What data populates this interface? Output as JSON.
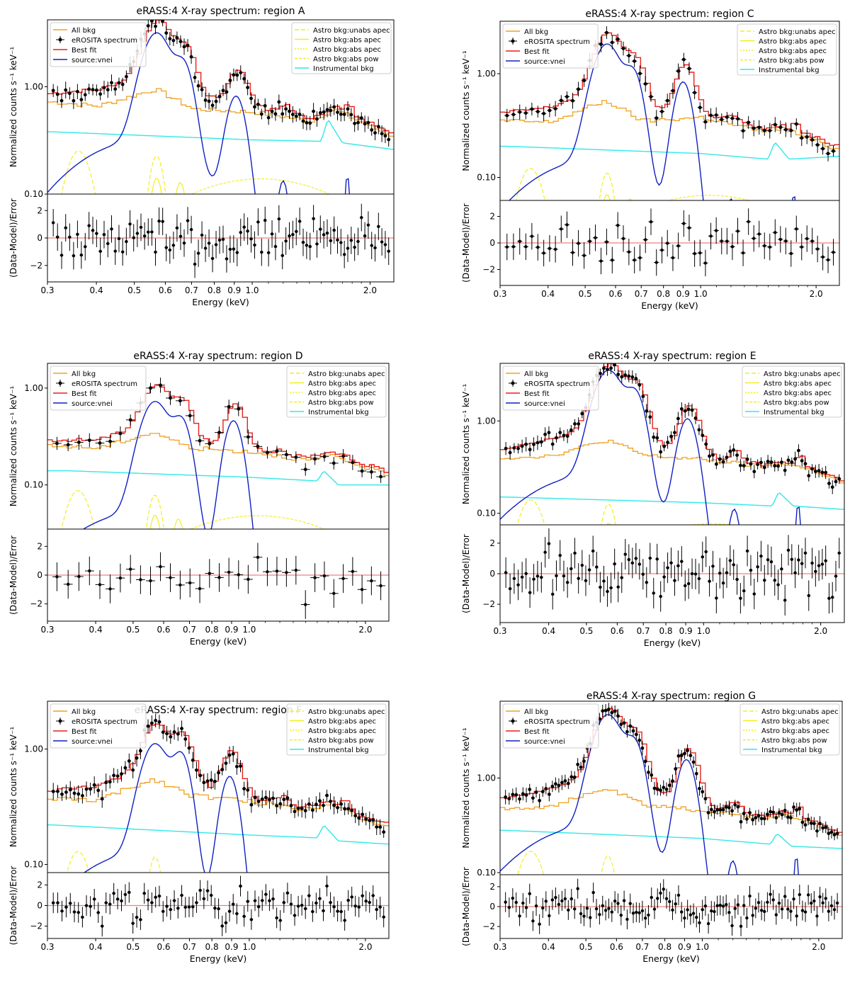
{
  "figure": {
    "colors": {
      "all_bkg": "#f0a020",
      "data": "#000000",
      "best_fit": "#e8201c",
      "source": "#1020c0",
      "astro": "#f2ee20",
      "instrumental": "#30e8e8",
      "zero_line": "#f08080"
    },
    "legend_left": [
      "All bkg",
      "eROSITA spectrum",
      "Best fit",
      "source:vnei"
    ],
    "legend_right": [
      "Astro bkg:unabs apec",
      "Astro bkg:abs apec",
      "Astro bkg:abs apec",
      "Astro bkg:abs pow",
      "Instrumental bkg"
    ],
    "ylabel_top": "Normalized counts s⁻¹ keV⁻¹",
    "ylabel_bottom": "(Data-Model)/Error",
    "xlabel": "Energy (keV)",
    "x_ticks": [
      "0.3",
      "0.4",
      "0.5",
      "0.6",
      "0.7",
      "0.8",
      "0.9",
      "1.0",
      "2.0"
    ],
    "x_tick_values": [
      0.3,
      0.4,
      0.5,
      0.6,
      0.7,
      0.8,
      0.9,
      1.0,
      2.0
    ],
    "resid_ticks": [
      "−2",
      "0",
      "2"
    ]
  },
  "chart_data": [
    {
      "type": "line",
      "title": "eRASS:4 X-ray spectrum: region A",
      "xscale": "log",
      "yscale": "log",
      "xlim": [
        0.3,
        2.3
      ],
      "ylim": [
        0.1,
        4.2
      ],
      "resid_ylim": [
        -3.2,
        3.2
      ],
      "y_ticks": [
        "0.10",
        "1.00"
      ],
      "y_tick_values": [
        0.1,
        1.0
      ],
      "src_peaks": [
        [
          0.57,
          2.9
        ],
        [
          0.67,
          1.3
        ],
        [
          0.91,
          0.75
        ]
      ],
      "src_cont": 0.3,
      "series": {
        "all_bkg": {
          "x": [
            0.31,
            0.4,
            0.56,
            0.7,
            1.0,
            1.4,
            1.6,
            2.0,
            2.3
          ],
          "y": [
            0.72,
            0.66,
            0.95,
            0.62,
            0.58,
            0.48,
            0.62,
            0.42,
            0.34
          ]
        },
        "instrumental": {
          "x": [
            0.31,
            1.0,
            1.5,
            1.56,
            1.7,
            2.3
          ],
          "y": [
            0.38,
            0.32,
            0.31,
            0.5,
            0.3,
            0.26
          ]
        },
        "data_points": 95,
        "resid_points": 95
      }
    },
    {
      "type": "line",
      "title": "eRASS:4 X-ray spectrum: region C",
      "xscale": "log",
      "yscale": "log",
      "xlim": [
        0.3,
        2.3
      ],
      "ylim": [
        0.06,
        3.2
      ],
      "resid_ylim": [
        -3.2,
        3.2
      ],
      "y_ticks": [
        "0.10",
        "1.00"
      ],
      "y_tick_values": [
        0.1,
        1.0
      ],
      "src_peaks": [
        [
          0.57,
          1.8
        ],
        [
          0.67,
          0.85
        ],
        [
          0.9,
          0.8
        ]
      ],
      "src_cont": 0.14,
      "series": {
        "all_bkg": {
          "x": [
            0.31,
            0.4,
            0.56,
            0.7,
            1.0,
            1.4,
            1.6,
            2.0,
            2.3
          ],
          "y": [
            0.35,
            0.34,
            0.55,
            0.35,
            0.38,
            0.28,
            0.3,
            0.22,
            0.18
          ]
        },
        "instrumental": {
          "x": [
            0.31,
            1.0,
            1.5,
            1.56,
            1.7,
            2.3
          ],
          "y": [
            0.2,
            0.17,
            0.15,
            0.22,
            0.15,
            0.16
          ]
        },
        "data_points": 60,
        "resid_points": 60
      }
    },
    {
      "type": "line",
      "title": "eRASS:4 X-ray spectrum: region D",
      "xscale": "log",
      "yscale": "log",
      "xlim": [
        0.3,
        2.3
      ],
      "ylim": [
        0.035,
        1.8
      ],
      "resid_ylim": [
        -3.2,
        3.2
      ],
      "y_ticks": [
        "0.10",
        "1.00"
      ],
      "y_tick_values": [
        0.1,
        1.0
      ],
      "src_peaks": [
        [
          0.57,
          0.68
        ],
        [
          0.67,
          0.4
        ],
        [
          0.91,
          0.45
        ]
      ],
      "src_cont": 0.05,
      "series": {
        "all_bkg": {
          "x": [
            0.34,
            0.4,
            0.56,
            0.7,
            1.0,
            1.4,
            1.6,
            2.0,
            2.2
          ],
          "y": [
            0.25,
            0.24,
            0.35,
            0.24,
            0.22,
            0.18,
            0.2,
            0.15,
            0.13
          ]
        },
        "instrumental": {
          "x": [
            0.34,
            1.0,
            1.5,
            1.56,
            1.7,
            2.2
          ],
          "y": [
            0.14,
            0.12,
            0.11,
            0.14,
            0.1,
            0.1
          ]
        },
        "data_points": 34,
        "resid_points": 34
      }
    },
    {
      "type": "line",
      "title": "eRASS:4 X-ray spectrum: region E",
      "xscale": "log",
      "yscale": "log",
      "xlim": [
        0.3,
        2.3
      ],
      "ylim": [
        0.075,
        4.2
      ],
      "resid_ylim": [
        -3.2,
        3.2
      ],
      "y_ticks": [
        "0.10",
        "1.00"
      ],
      "y_tick_values": [
        0.1,
        1.0
      ],
      "src_peaks": [
        [
          0.57,
          3.3
        ],
        [
          0.67,
          1.7
        ],
        [
          0.91,
          1.0
        ]
      ],
      "src_cont": 0.25,
      "series": {
        "all_bkg": {
          "x": [
            0.31,
            0.4,
            0.56,
            0.7,
            1.0,
            1.4,
            1.6,
            2.0,
            2.3
          ],
          "y": [
            0.4,
            0.42,
            0.62,
            0.42,
            0.38,
            0.32,
            0.35,
            0.27,
            0.2
          ]
        },
        "instrumental": {
          "x": [
            0.31,
            1.0,
            1.5,
            1.56,
            1.7,
            2.3
          ],
          "y": [
            0.15,
            0.13,
            0.12,
            0.17,
            0.12,
            0.11
          ]
        },
        "data_points": 95,
        "resid_points": 95
      }
    },
    {
      "type": "line",
      "title": "eRASS:4 X-ray spectrum: region F",
      "xscale": "log",
      "yscale": "log",
      "xlim": [
        0.3,
        2.3
      ],
      "ylim": [
        0.085,
        2.6
      ],
      "resid_ylim": [
        -3.2,
        3.2
      ],
      "y_ticks": [
        "0.10",
        "1.00"
      ],
      "y_tick_values": [
        0.1,
        1.0
      ],
      "src_peaks": [
        [
          0.57,
          1.0
        ],
        [
          0.67,
          0.75
        ],
        [
          0.89,
          0.55
        ]
      ],
      "src_cont": 0.12,
      "series": {
        "all_bkg": {
          "x": [
            0.31,
            0.4,
            0.56,
            0.7,
            1.0,
            1.4,
            1.6,
            2.0,
            2.3
          ],
          "y": [
            0.37,
            0.36,
            0.55,
            0.4,
            0.35,
            0.3,
            0.35,
            0.24,
            0.2
          ]
        },
        "instrumental": {
          "x": [
            0.31,
            1.0,
            1.5,
            1.56,
            1.7,
            2.3
          ],
          "y": [
            0.22,
            0.18,
            0.17,
            0.22,
            0.16,
            0.15
          ]
        },
        "data_points": 90,
        "resid_points": 90
      }
    },
    {
      "type": "line",
      "title": "eRASS:4 X-ray spectrum: region G",
      "xscale": "log",
      "yscale": "log",
      "xlim": [
        0.3,
        2.3
      ],
      "ylim": [
        0.095,
        6.5
      ],
      "resid_ylim": [
        -3.2,
        3.2
      ],
      "y_ticks": [
        "0.10",
        "1.00"
      ],
      "y_tick_values": [
        0.1,
        1.0
      ],
      "src_peaks": [
        [
          0.57,
          4.4
        ],
        [
          0.67,
          2.0
        ],
        [
          0.91,
          1.5
        ]
      ],
      "src_cont": 0.3,
      "series": {
        "all_bkg": {
          "x": [
            0.31,
            0.4,
            0.56,
            0.7,
            1.0,
            1.4,
            1.6,
            2.0,
            2.3
          ],
          "y": [
            0.48,
            0.5,
            0.78,
            0.52,
            0.45,
            0.38,
            0.42,
            0.3,
            0.24
          ]
        },
        "instrumental": {
          "x": [
            0.31,
            1.0,
            1.5,
            1.56,
            1.7,
            2.3
          ],
          "y": [
            0.28,
            0.23,
            0.2,
            0.26,
            0.19,
            0.18
          ]
        },
        "data_points": 110,
        "resid_points": 110
      }
    }
  ]
}
